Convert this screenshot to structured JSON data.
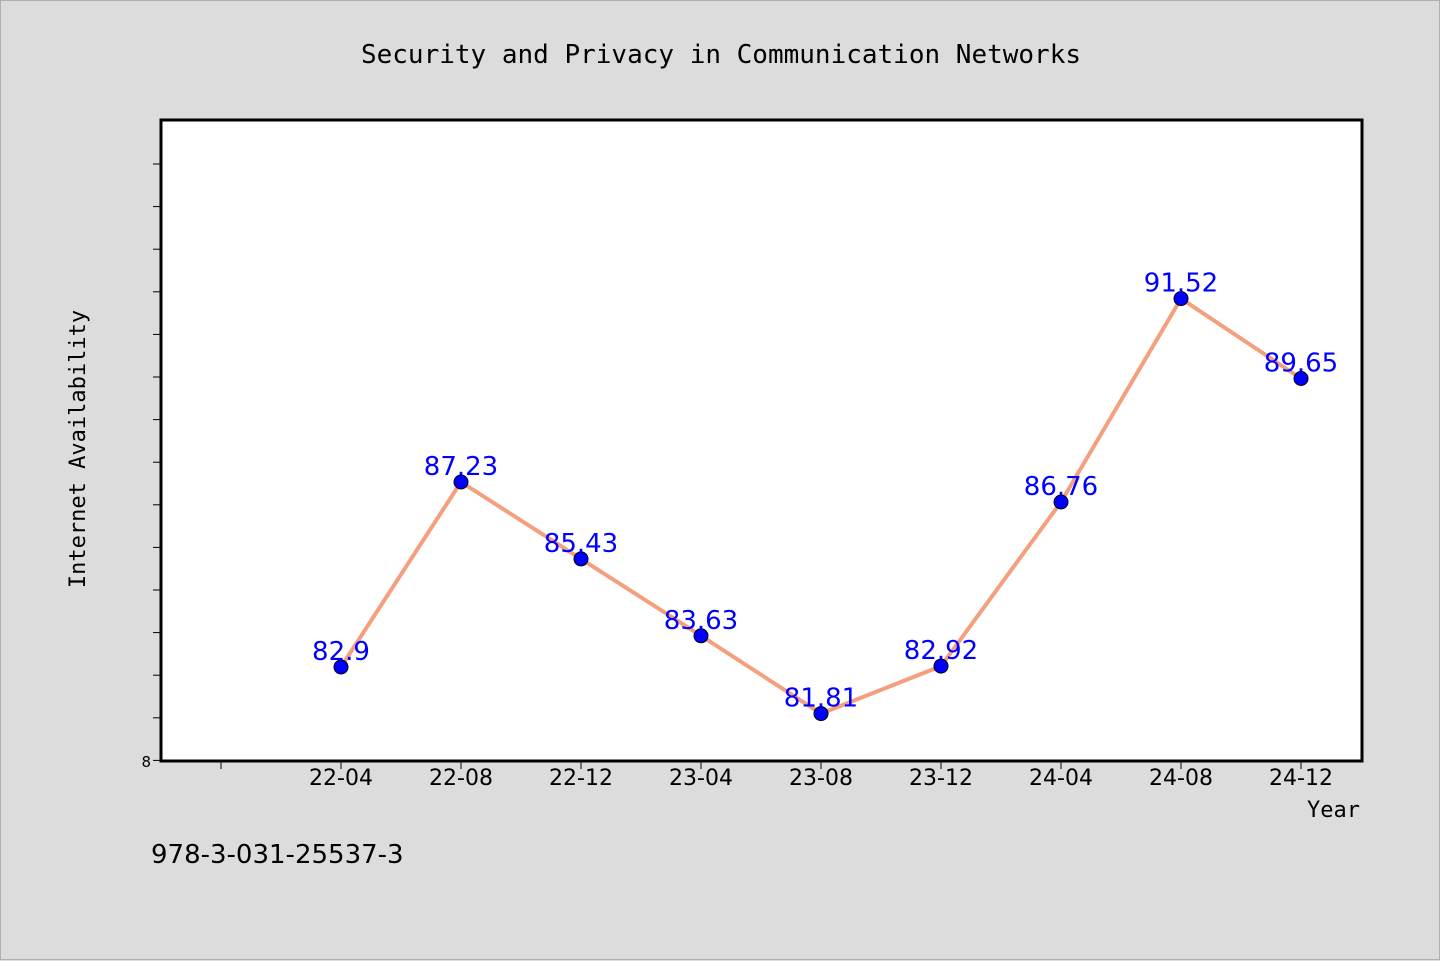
{
  "chart_data": {
    "type": "line",
    "title": "Security and Privacy in Communication Networks",
    "xlabel": "Year",
    "ylabel": "Internet Availability",
    "categories": [
      "22-04",
      "22-08",
      "22-12",
      "23-04",
      "23-08",
      "23-12",
      "24-04",
      "24-08",
      "24-12"
    ],
    "series": [
      {
        "values": [
          82.9,
          87.23,
          85.43,
          83.63,
          81.81,
          82.92,
          86.76,
          91.52,
          89.65
        ]
      }
    ],
    "data_labels": [
      "82.9",
      "87.23",
      "85.43",
      "83.63",
      "81.81",
      "82.92",
      "86.76",
      "91.52",
      "89.65"
    ],
    "y_tick_label": "8",
    "ylim": [
      80.7,
      95.7
    ],
    "grid": false,
    "legend": "none",
    "line_color": "#f4a07f",
    "marker_color": "#0000ff",
    "label_color": "#0000ff"
  },
  "footer": {
    "isbn": "978-3-031-25537-3"
  }
}
